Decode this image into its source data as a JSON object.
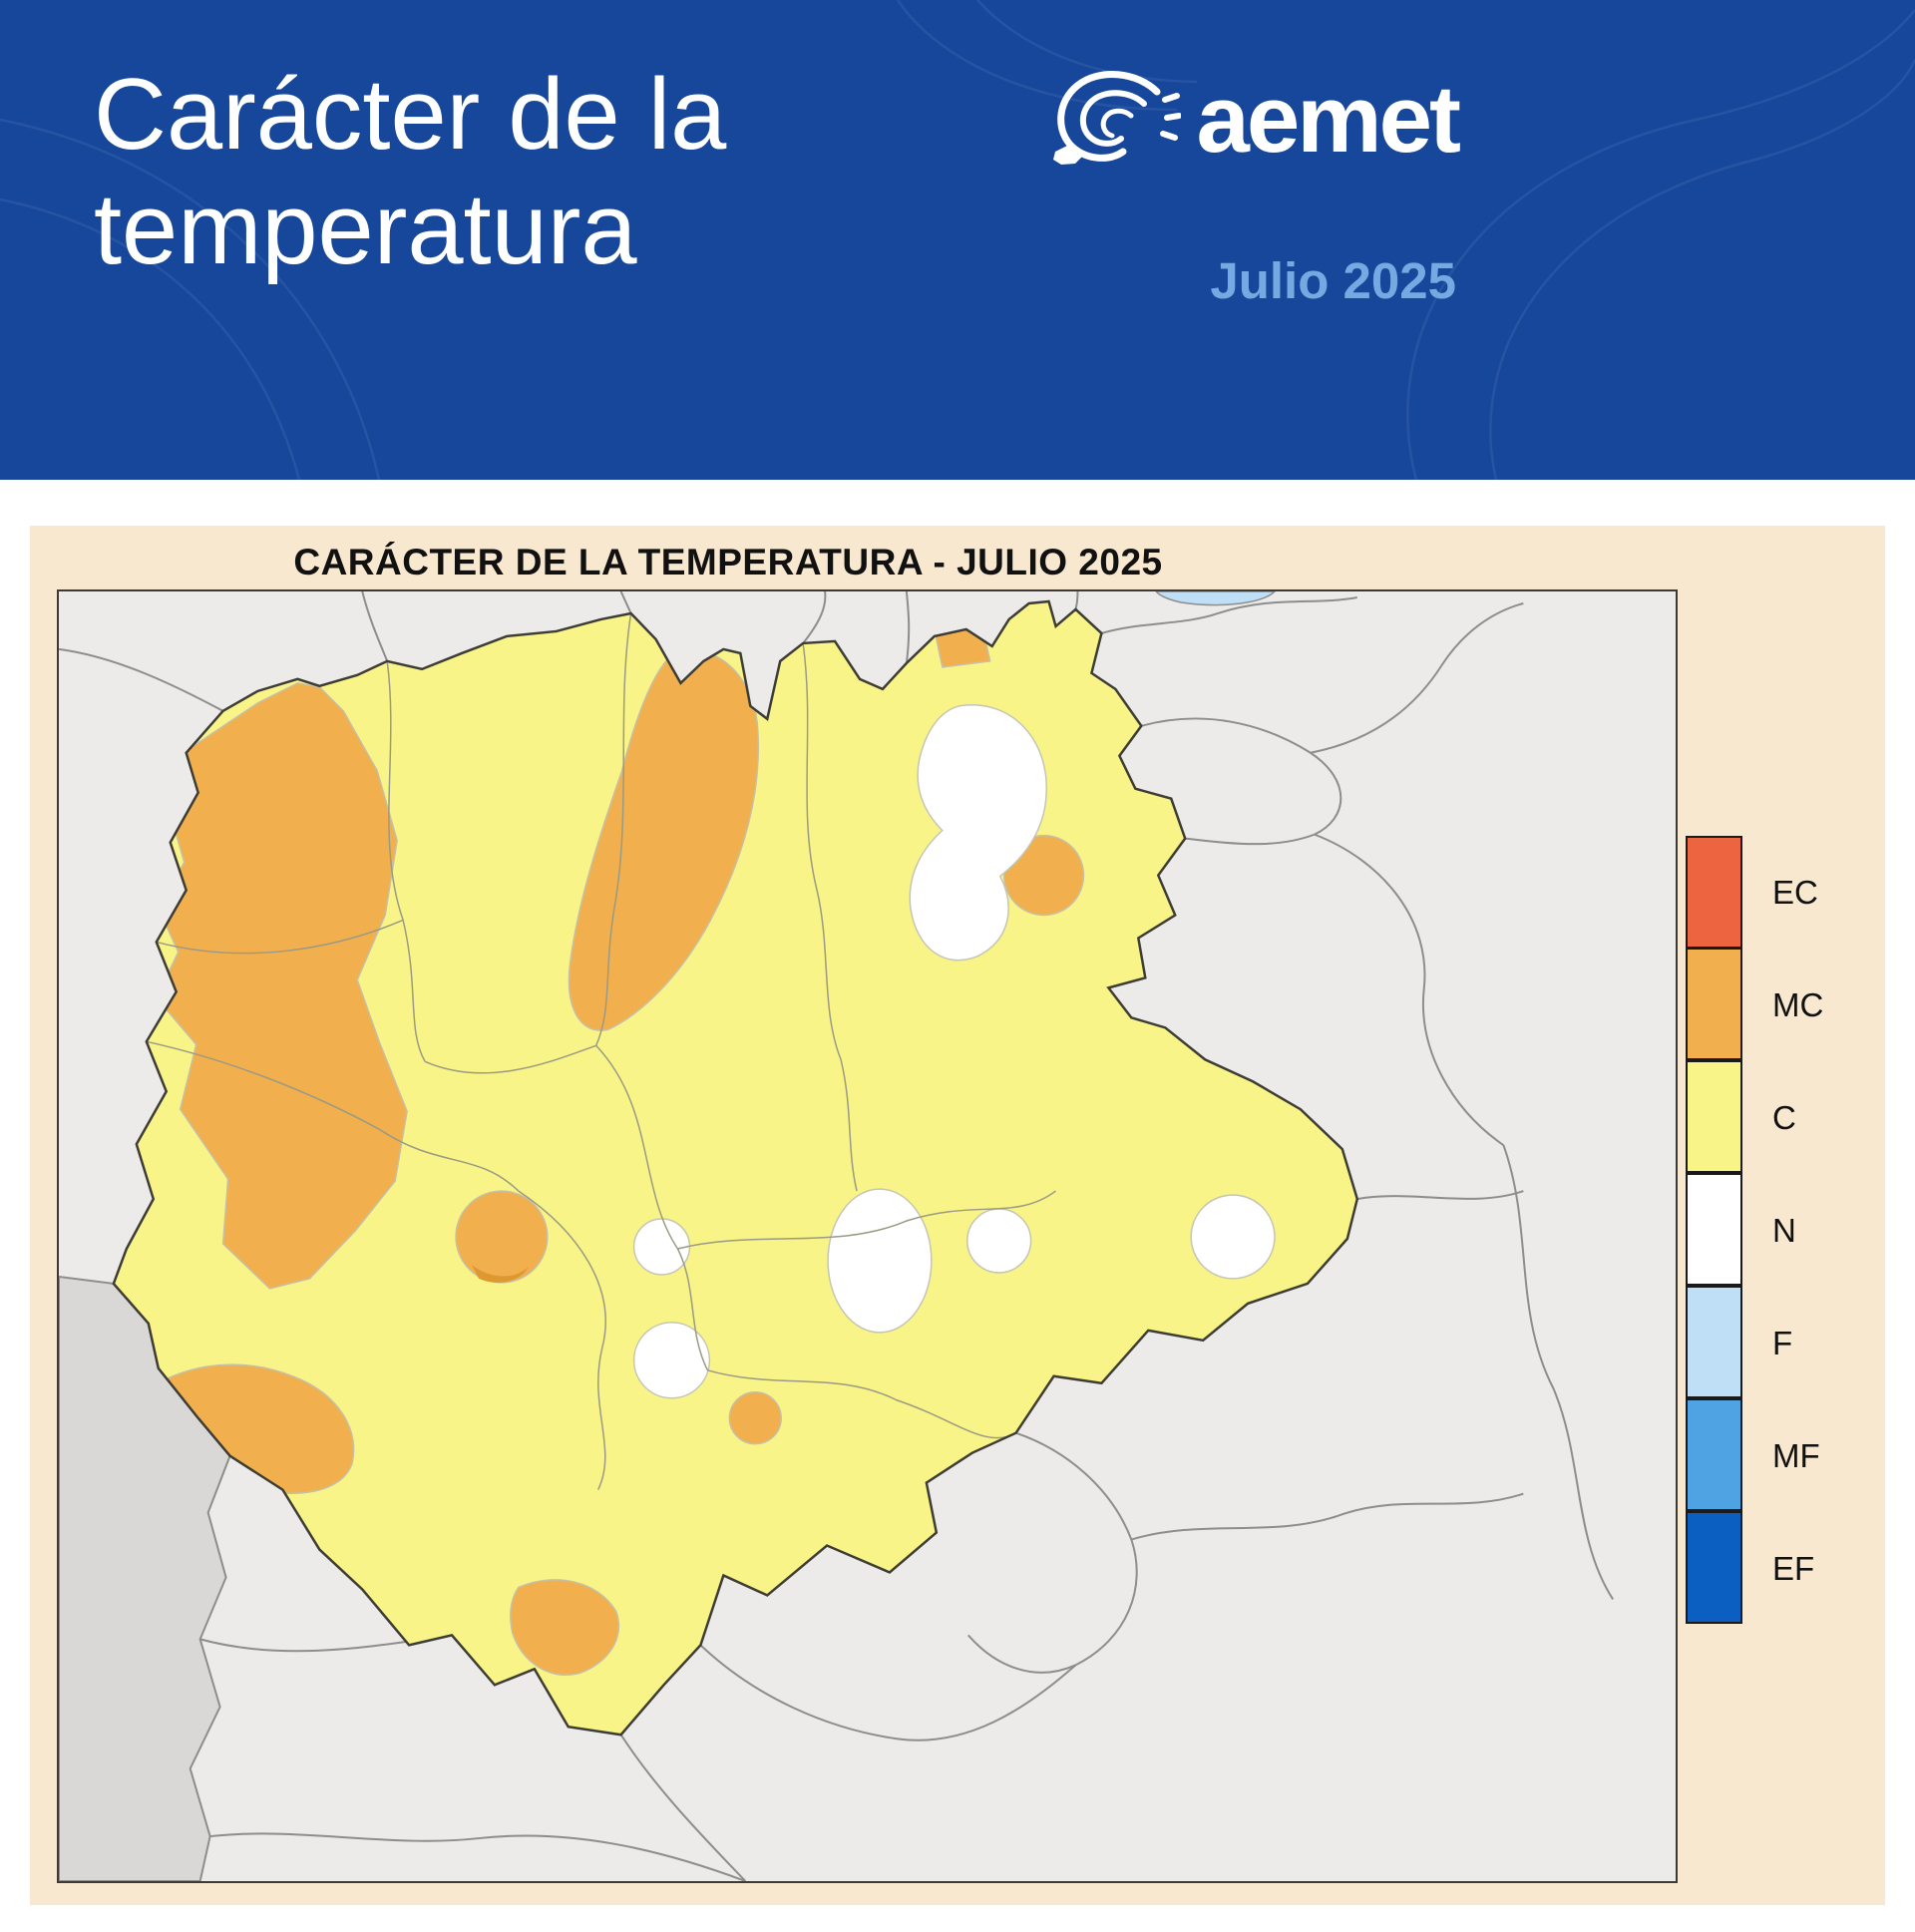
{
  "header": {
    "title_line1": "Carácter de la",
    "title_line2": "temperatura",
    "brand": "aemet",
    "period": "Julio 2025"
  },
  "map": {
    "title": "CARÁCTER DE LA TEMPERATURA - JULIO 2025",
    "legend": {
      "items": [
        {
          "code": "EC",
          "color": "#EC6440"
        },
        {
          "code": "MC",
          "color": "#F2AF4D"
        },
        {
          "code": "C",
          "color": "#F8F487"
        },
        {
          "code": "N",
          "color": "#FFFFFF"
        },
        {
          "code": "F",
          "color": "#BEDFF6"
        },
        {
          "code": "MF",
          "color": "#4FA3E3"
        },
        {
          "code": "EF",
          "color": "#0A5FC0"
        }
      ]
    }
  },
  "colors": {
    "banner_bg": "#17479B",
    "banner_text": "#FFFFFF",
    "period_text": "#74AAE1",
    "panel_bg": "#F8E8CF",
    "map_background": "#ECEBE9",
    "neighbor_region": "#D9D8D6",
    "warm_ec": "#EC6440",
    "warm_mc": "#F2AF4D",
    "warm_c": "#F8F487",
    "normal": "#FFFFFF",
    "cool_f": "#BEDFF6",
    "cool_mf": "#4FA3E3",
    "cool_ef": "#0A5FC0"
  }
}
